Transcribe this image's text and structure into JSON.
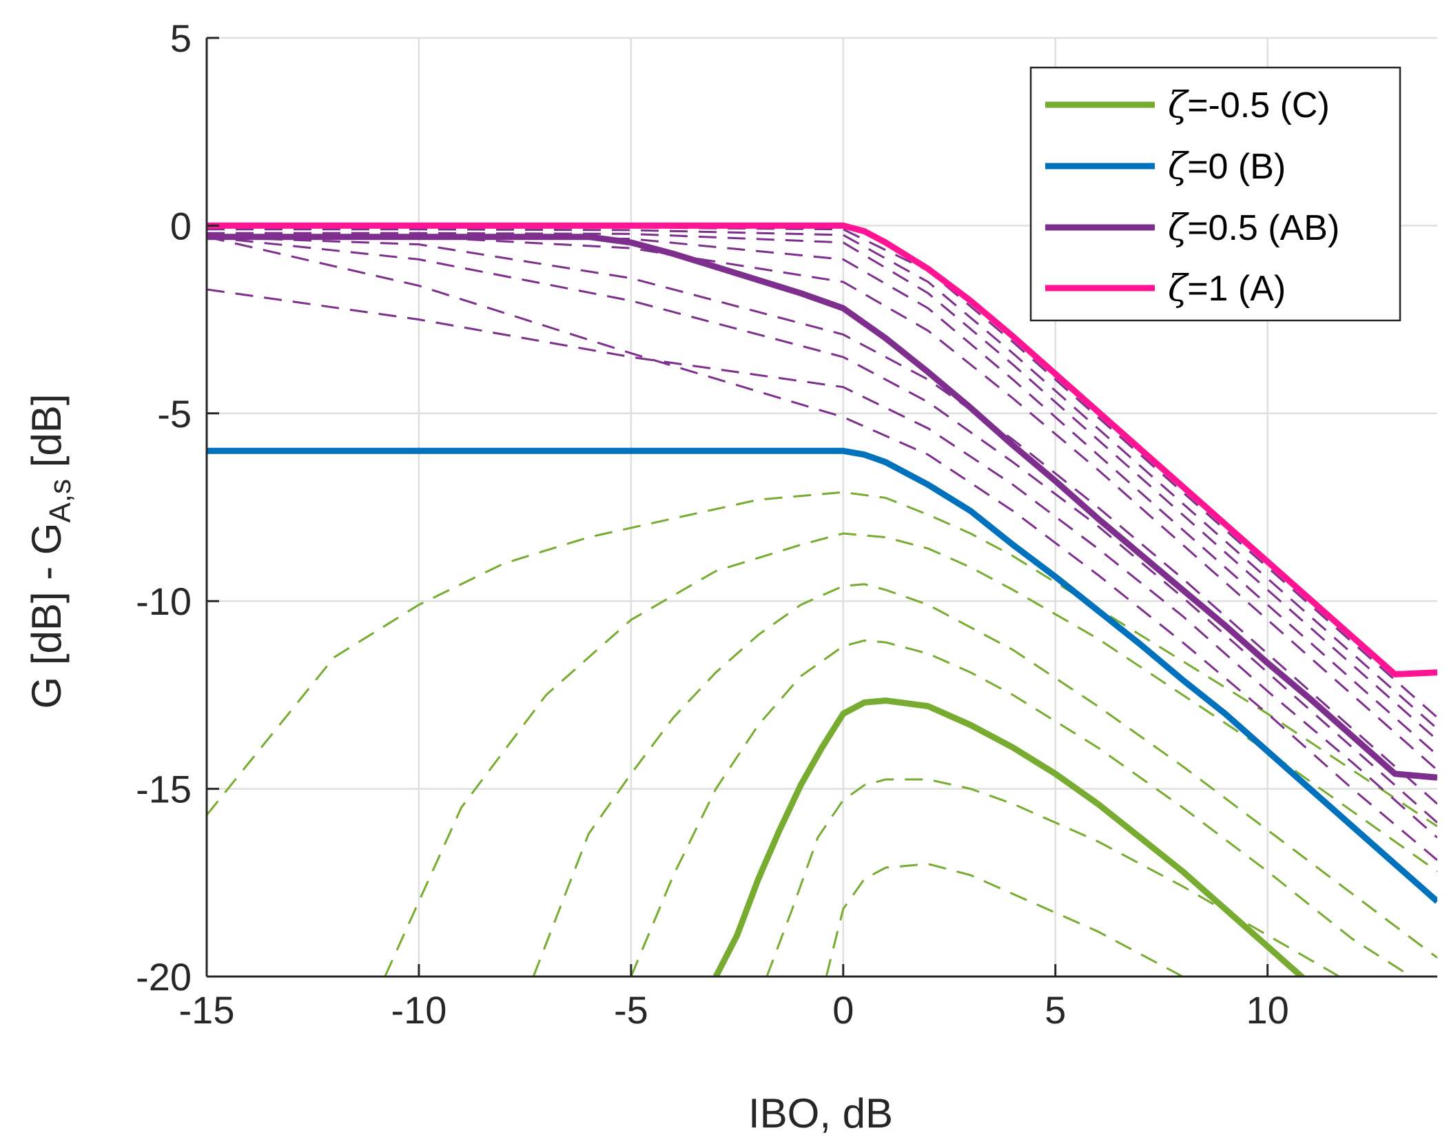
{
  "chart_data": {
    "type": "line",
    "title": "",
    "xlabel": "IBO, dB",
    "ylabel": "G [dB] - G",
    "ylabel_subscript": "A,s",
    "ylabel_suffix": " [dB]",
    "xlim": [
      -15,
      14
    ],
    "ylim": [
      -20,
      5
    ],
    "xticks": [
      -15,
      -10,
      -5,
      0,
      5,
      10
    ],
    "yticks": [
      -20,
      -15,
      -10,
      -5,
      0,
      5
    ],
    "xtick_labels": [
      "-15",
      "-10",
      "-5",
      "0",
      "5",
      "10"
    ],
    "ytick_labels": [
      "-20",
      "-15",
      "-10",
      "-5",
      "0",
      "5"
    ],
    "grid": true,
    "legend_position": "top-right",
    "series": [
      {
        "name": "C",
        "legend_symbol": "ζ",
        "legend_label": "=-0.5 (C)",
        "color": "#77ac30",
        "style": "solid",
        "x": [
          -3.0,
          -2.5,
          -2.0,
          -1.5,
          -1.0,
          -0.5,
          0,
          0.5,
          1,
          2,
          3,
          4,
          5,
          6,
          7,
          8,
          9,
          10,
          11
        ],
        "y": [
          -20,
          -18.9,
          -17.4,
          -16.1,
          -14.9,
          -13.9,
          -13.0,
          -12.7,
          -12.65,
          -12.8,
          -13.3,
          -13.9,
          -14.6,
          -15.4,
          -16.3,
          -17.2,
          -18.2,
          -19.2,
          -20.2
        ]
      },
      {
        "name": "B",
        "legend_symbol": "ζ",
        "legend_label": "=0 (B)",
        "color": "#0072bd",
        "style": "solid",
        "x": [
          -15,
          -10,
          -5,
          0,
          0.5,
          1,
          2,
          3,
          4,
          5,
          6,
          7,
          8,
          9,
          10,
          11,
          12,
          13,
          14
        ],
        "y": [
          -6,
          -6,
          -6,
          -6,
          -6.1,
          -6.3,
          -6.9,
          -7.6,
          -8.5,
          -9.35,
          -10.25,
          -11.15,
          -12.1,
          -13.0,
          -14.0,
          -15.0,
          -16.0,
          -17.0,
          -18.0
        ]
      },
      {
        "name": "AB",
        "legend_symbol": "ζ",
        "legend_label": "=0.5 (AB)",
        "color": "#7e2f8e",
        "style": "solid",
        "x": [
          -15,
          -10,
          -6,
          -5,
          -4,
          -3,
          -2,
          -1,
          0,
          1,
          2,
          3,
          4,
          5,
          6,
          7,
          8,
          9,
          10,
          11,
          12,
          13,
          14
        ],
        "y": [
          -0.3,
          -0.3,
          -0.3,
          -0.45,
          -0.75,
          -1.1,
          -1.45,
          -1.8,
          -2.2,
          -3.0,
          -3.9,
          -4.85,
          -5.85,
          -6.8,
          -7.8,
          -8.75,
          -9.7,
          -10.65,
          -11.65,
          -12.6,
          -13.6,
          -14.6,
          -14.7
        ]
      },
      {
        "name": "A",
        "legend_symbol": "ζ",
        "legend_label": "=1 (A)",
        "color": "#ff1493",
        "style": "solid",
        "x": [
          -15,
          -10,
          -5,
          0,
          0.5,
          1,
          2,
          3,
          4,
          5,
          6,
          7,
          8,
          9,
          10,
          11,
          12,
          13,
          14
        ],
        "y": [
          0,
          0,
          0,
          0,
          -0.15,
          -0.45,
          -1.15,
          -2.0,
          -2.95,
          -3.95,
          -4.95,
          -5.95,
          -6.95,
          -7.95,
          -8.95,
          -9.95,
          -10.95,
          -11.95,
          -11.9
        ]
      }
    ],
    "dashed_series": [
      {
        "group": "green",
        "x": [
          -15,
          -12,
          -10,
          -8,
          -6,
          -4,
          -2,
          0,
          1,
          2,
          3,
          4,
          5,
          6,
          8,
          10,
          12,
          14
        ],
        "y": [
          -15.7,
          -11.5,
          -10.1,
          -9.0,
          -8.3,
          -7.8,
          -7.3,
          -7.1,
          -7.25,
          -7.7,
          -8.2,
          -8.8,
          -9.5,
          -10.2,
          -11.6,
          -13.0,
          -14.5,
          -16.0
        ]
      },
      {
        "group": "green",
        "x": [
          -10.8,
          -9,
          -7,
          -5,
          -3,
          -1,
          0,
          1,
          2,
          3,
          4,
          6,
          8,
          10,
          12,
          14
        ],
        "y": [
          -20,
          -15.5,
          -12.5,
          -10.5,
          -9.2,
          -8.5,
          -8.2,
          -8.3,
          -8.6,
          -9.1,
          -9.7,
          -11.0,
          -12.5,
          -14.0,
          -15.6,
          -17.2
        ]
      },
      {
        "group": "green",
        "x": [
          -7.3,
          -6,
          -5,
          -4,
          -3,
          -2,
          -1,
          0,
          0.5,
          1,
          2,
          3,
          4,
          6,
          8,
          10,
          12,
          14
        ],
        "y": [
          -20,
          -16.2,
          -14.6,
          -13.1,
          -11.9,
          -10.9,
          -10.1,
          -9.6,
          -9.55,
          -9.7,
          -10.1,
          -10.7,
          -11.3,
          -12.8,
          -14.4,
          -16.1,
          -17.8,
          -19.5
        ]
      },
      {
        "group": "green",
        "x": [
          -5.0,
          -4,
          -3,
          -2,
          -1,
          0,
          0.5,
          1,
          2,
          3,
          4,
          6,
          8,
          10,
          12,
          13.8
        ],
        "y": [
          -20,
          -17.3,
          -15.0,
          -13.3,
          -12.0,
          -11.2,
          -11.05,
          -11.1,
          -11.4,
          -11.9,
          -12.5,
          -13.9,
          -15.5,
          -17.2,
          -19.0,
          -20.3
        ]
      },
      {
        "group": "green",
        "x": [
          -1.8,
          -1.2,
          -0.6,
          0,
          0.5,
          1,
          2,
          3,
          4,
          6,
          8,
          10,
          12,
          14
        ],
        "y": [
          -20,
          -18.2,
          -16.3,
          -15.3,
          -14.9,
          -14.75,
          -14.75,
          -15.0,
          -15.4,
          -16.4,
          -17.6,
          -18.9,
          -20.2,
          -21.5
        ]
      },
      {
        "group": "green",
        "x": [
          -0.4,
          0,
          0.5,
          1,
          2,
          3,
          4,
          6,
          8,
          9.8
        ],
        "y": [
          -20,
          -18.2,
          -17.4,
          -17.1,
          -17.0,
          -17.3,
          -17.8,
          -18.8,
          -20.0,
          -21.2
        ]
      },
      {
        "group": "purple",
        "x": [
          -15,
          -10,
          -5,
          0,
          2,
          4,
          6,
          8,
          10,
          12,
          14
        ],
        "y": [
          -0.05,
          -0.05,
          -0.05,
          -0.1,
          -1.2,
          -3.1,
          -5.1,
          -7.1,
          -9.1,
          -11.1,
          -13.1
        ]
      },
      {
        "group": "purple",
        "x": [
          -15,
          -10,
          -5,
          0,
          2,
          4,
          6,
          8,
          10,
          12,
          14
        ],
        "y": [
          -0.1,
          -0.1,
          -0.12,
          -0.25,
          -1.5,
          -3.4,
          -5.4,
          -7.4,
          -9.4,
          -11.4,
          -13.4
        ]
      },
      {
        "group": "purple",
        "x": [
          -15,
          -10,
          -5,
          0,
          2,
          4,
          6,
          8,
          10,
          12,
          14
        ],
        "y": [
          -0.2,
          -0.2,
          -0.22,
          -0.45,
          -1.8,
          -3.7,
          -5.7,
          -7.7,
          -9.7,
          -11.7,
          -13.7
        ]
      },
      {
        "group": "purple",
        "x": [
          -15,
          -10,
          -5,
          0,
          2,
          4,
          6,
          8,
          10,
          12,
          14
        ],
        "y": [
          -0.3,
          -0.3,
          -0.35,
          -0.9,
          -2.2,
          -4.1,
          -6.1,
          -8.1,
          -10.1,
          -12.1,
          -14.1
        ]
      },
      {
        "group": "purple",
        "x": [
          -15,
          -10,
          -5,
          0,
          2,
          4,
          6,
          8,
          10,
          12,
          14
        ],
        "y": [
          -0.3,
          -0.3,
          -0.6,
          -1.5,
          -2.8,
          -4.6,
          -6.5,
          -8.5,
          -10.5,
          -12.5,
          -14.5
        ]
      },
      {
        "group": "purple",
        "x": [
          -15,
          -10,
          -5,
          0,
          2,
          4,
          6,
          8,
          10,
          12,
          14
        ],
        "y": [
          -0.3,
          -0.5,
          -1.4,
          -2.9,
          -4.1,
          -5.7,
          -7.5,
          -9.4,
          -11.4,
          -13.4,
          -15.4
        ]
      },
      {
        "group": "purple",
        "x": [
          -15,
          -10,
          -5,
          0,
          2,
          4,
          6,
          8,
          10,
          12,
          14
        ],
        "y": [
          -0.3,
          -0.9,
          -2.0,
          -3.5,
          -4.7,
          -6.3,
          -8.0,
          -9.9,
          -11.9,
          -13.9,
          -15.9
        ]
      },
      {
        "group": "purple",
        "x": [
          -15,
          -10,
          -5,
          0,
          2,
          4,
          6,
          8,
          10,
          12,
          14
        ],
        "y": [
          -1.7,
          -2.5,
          -3.5,
          -4.3,
          -5.4,
          -6.9,
          -8.6,
          -10.4,
          -12.4,
          -14.3,
          -16.3
        ]
      },
      {
        "group": "purple",
        "x": [
          -15,
          -10,
          -5,
          0,
          2,
          4,
          6,
          8,
          10,
          12,
          14
        ],
        "y": [
          -0.3,
          -1.6,
          -3.4,
          -5.1,
          -6.1,
          -7.6,
          -9.3,
          -11.1,
          -13.0,
          -15.0,
          -16.9
        ]
      }
    ],
    "dashed_colors": {
      "green": "#77ac30",
      "purple": "#7e2f8e"
    }
  }
}
